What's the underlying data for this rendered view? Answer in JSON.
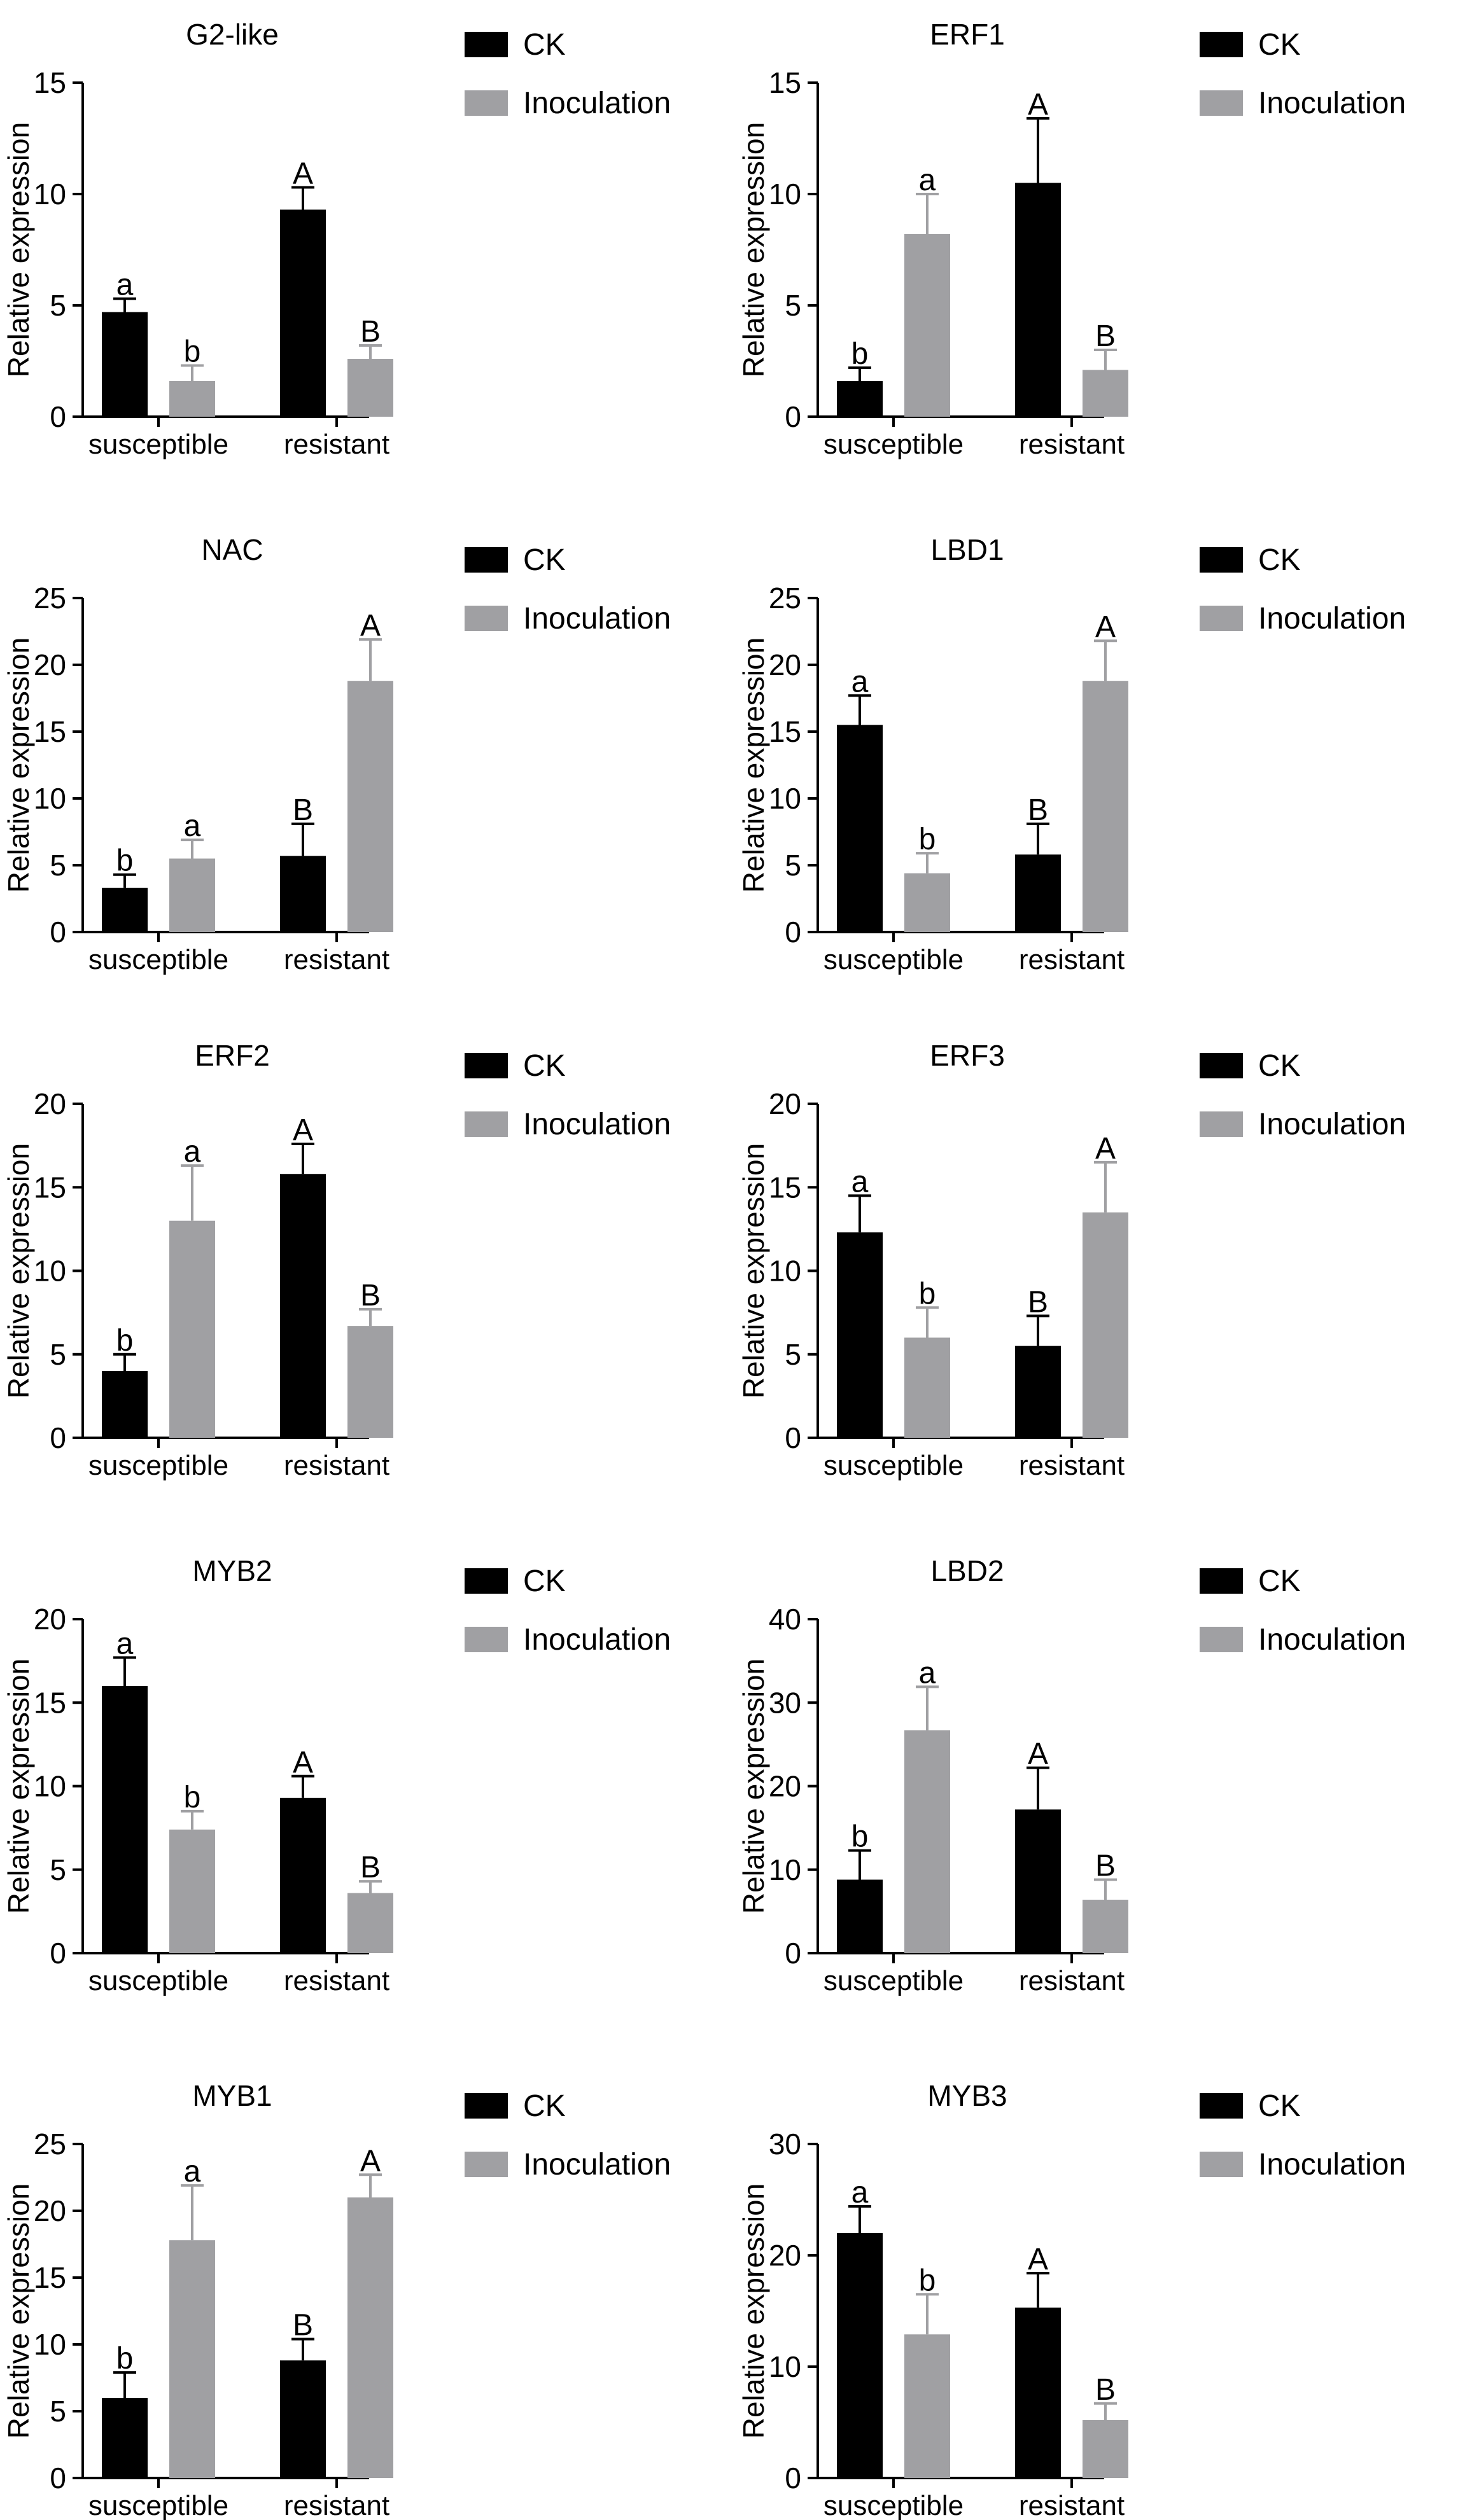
{
  "legend": {
    "ck": "CK",
    "inoculation": "Inoculation"
  },
  "colors": {
    "ck": "#000000",
    "inoculation": "#a0a0a3",
    "axis": "#000000"
  },
  "chart_data": [
    {
      "type": "bar",
      "title": "G2-like",
      "ylabel": "Relative expression",
      "categories": [
        "susceptible",
        "resistant"
      ],
      "ylim": [
        0,
        15
      ],
      "yticks": [
        0,
        5,
        10,
        15
      ],
      "series": [
        {
          "name": "CK",
          "values": [
            4.7,
            9.3
          ],
          "errors": [
            0.6,
            1.0
          ],
          "letters": [
            "a",
            "A"
          ]
        },
        {
          "name": "Inoculation",
          "values": [
            1.6,
            2.6
          ],
          "errors": [
            0.7,
            0.6
          ],
          "letters": [
            "b",
            "B"
          ]
        }
      ]
    },
    {
      "type": "bar",
      "title": "ERF1",
      "ylabel": "Relative expression",
      "categories": [
        "susceptible",
        "resistant"
      ],
      "ylim": [
        0,
        15
      ],
      "yticks": [
        0,
        5,
        10,
        15
      ],
      "series": [
        {
          "name": "CK",
          "values": [
            1.6,
            10.5
          ],
          "errors": [
            0.6,
            2.9
          ],
          "letters": [
            "b",
            "A"
          ]
        },
        {
          "name": "Inoculation",
          "values": [
            8.2,
            2.1
          ],
          "errors": [
            1.8,
            0.9
          ],
          "letters": [
            "a",
            "B"
          ]
        }
      ]
    },
    {
      "type": "bar",
      "title": "NAC",
      "ylabel": "Relative expression",
      "categories": [
        "susceptible",
        "resistant"
      ],
      "ylim": [
        0,
        25
      ],
      "yticks": [
        0,
        5,
        10,
        15,
        20,
        25
      ],
      "series": [
        {
          "name": "CK",
          "values": [
            3.3,
            5.7
          ],
          "errors": [
            1.0,
            2.4
          ],
          "letters": [
            "b",
            "B"
          ]
        },
        {
          "name": "Inoculation",
          "values": [
            5.5,
            18.8
          ],
          "errors": [
            1.4,
            3.1
          ],
          "letters": [
            "a",
            "A"
          ]
        }
      ]
    },
    {
      "type": "bar",
      "title": "LBD1",
      "ylabel": "Relative expression",
      "categories": [
        "susceptible",
        "resistant"
      ],
      "ylim": [
        0,
        25
      ],
      "yticks": [
        0,
        5,
        10,
        15,
        20,
        25
      ],
      "series": [
        {
          "name": "CK",
          "values": [
            15.5,
            5.8
          ],
          "errors": [
            2.2,
            2.3
          ],
          "letters": [
            "a",
            "B"
          ]
        },
        {
          "name": "Inoculation",
          "values": [
            4.4,
            18.8
          ],
          "errors": [
            1.5,
            3.0
          ],
          "letters": [
            "b",
            "A"
          ]
        }
      ]
    },
    {
      "type": "bar",
      "title": "ERF2",
      "ylabel": "Relative expression",
      "categories": [
        "susceptible",
        "resistant"
      ],
      "ylim": [
        0,
        20
      ],
      "yticks": [
        0,
        5,
        10,
        15,
        20
      ],
      "series": [
        {
          "name": "CK",
          "values": [
            4.0,
            15.8
          ],
          "errors": [
            1.0,
            1.8
          ],
          "letters": [
            "b",
            "A"
          ]
        },
        {
          "name": "Inoculation",
          "values": [
            13.0,
            6.7
          ],
          "errors": [
            3.3,
            1.0
          ],
          "letters": [
            "a",
            "B"
          ]
        }
      ]
    },
    {
      "type": "bar",
      "title": "ERF3",
      "ylabel": "Relative expression",
      "categories": [
        "susceptible",
        "resistant"
      ],
      "ylim": [
        0,
        20
      ],
      "yticks": [
        0,
        5,
        10,
        15,
        20
      ],
      "series": [
        {
          "name": "CK",
          "values": [
            12.3,
            5.5
          ],
          "errors": [
            2.2,
            1.8
          ],
          "letters": [
            "a",
            "B"
          ]
        },
        {
          "name": "Inoculation",
          "values": [
            6.0,
            13.5
          ],
          "errors": [
            1.8,
            3.0
          ],
          "letters": [
            "b",
            "A"
          ]
        }
      ]
    },
    {
      "type": "bar",
      "title": "MYB2",
      "ylabel": "Relative expression",
      "categories": [
        "susceptible",
        "resistant"
      ],
      "ylim": [
        0,
        20
      ],
      "yticks": [
        0,
        5,
        10,
        15,
        20
      ],
      "series": [
        {
          "name": "CK",
          "values": [
            16.0,
            9.3
          ],
          "errors": [
            1.7,
            1.3
          ],
          "letters": [
            "a",
            "A"
          ]
        },
        {
          "name": "Inoculation",
          "values": [
            7.4,
            3.6
          ],
          "errors": [
            1.1,
            0.7
          ],
          "letters": [
            "b",
            "B"
          ]
        }
      ]
    },
    {
      "type": "bar",
      "title": "LBD2",
      "ylabel": "Relative expression",
      "categories": [
        "susceptible",
        "resistant"
      ],
      "ylim": [
        0,
        40
      ],
      "yticks": [
        0,
        10,
        20,
        30,
        40
      ],
      "series": [
        {
          "name": "CK",
          "values": [
            8.8,
            17.2
          ],
          "errors": [
            3.5,
            5.0
          ],
          "letters": [
            "b",
            "A"
          ]
        },
        {
          "name": "Inoculation",
          "values": [
            26.7,
            6.4
          ],
          "errors": [
            5.2,
            2.4
          ],
          "letters": [
            "a",
            "B"
          ]
        }
      ]
    },
    {
      "type": "bar",
      "title": "MYB1",
      "ylabel": "Relative expression",
      "categories": [
        "susceptible",
        "resistant"
      ],
      "ylim": [
        0,
        25
      ],
      "yticks": [
        0,
        5,
        10,
        15,
        20,
        25
      ],
      "series": [
        {
          "name": "CK",
          "values": [
            6.0,
            8.8
          ],
          "errors": [
            1.9,
            1.6
          ],
          "letters": [
            "b",
            "B"
          ]
        },
        {
          "name": "Inoculation",
          "values": [
            17.8,
            21.0
          ],
          "errors": [
            4.1,
            1.7
          ],
          "letters": [
            "a",
            "A"
          ]
        }
      ]
    },
    {
      "type": "bar",
      "title": "MYB3",
      "ylabel": "Relative expression",
      "categories": [
        "susceptible",
        "resistant"
      ],
      "ylim": [
        0,
        30
      ],
      "yticks": [
        0,
        10,
        20,
        30
      ],
      "series": [
        {
          "name": "CK",
          "values": [
            22.0,
            15.3
          ],
          "errors": [
            2.4,
            3.1
          ],
          "letters": [
            "a",
            "A"
          ]
        },
        {
          "name": "Inoculation",
          "values": [
            12.9,
            5.2
          ],
          "errors": [
            3.6,
            1.5
          ],
          "letters": [
            "b",
            "B"
          ]
        }
      ]
    }
  ]
}
